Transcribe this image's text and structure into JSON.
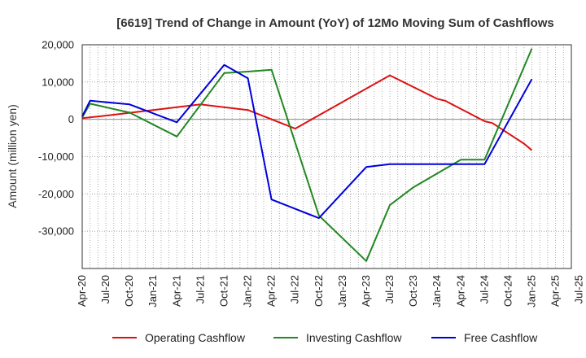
{
  "chart_data": {
    "type": "line",
    "title": "[6619]  Trend of Change in Amount (YoY) of 12Mo Moving Sum of Cashflows",
    "xlabel": "",
    "ylabel": "Amount (million yen)",
    "ylim": [
      -40000,
      20000
    ],
    "yticks": [
      20000,
      10000,
      0,
      -10000,
      -20000,
      -30000
    ],
    "ytick_labels": [
      "20,000",
      "10,000",
      "0",
      "-10,000",
      "-20,000",
      "-30,000"
    ],
    "xlim": [
      0,
      62
    ],
    "xtick_positions": [
      0,
      3,
      6,
      9,
      12,
      15,
      18,
      21,
      24,
      27,
      30,
      33,
      36,
      39,
      42,
      45,
      48,
      51,
      54,
      57,
      60,
      63
    ],
    "xtick_labels": [
      "Apr-20",
      "Jul-20",
      "Oct-20",
      "Jan-21",
      "Apr-21",
      "Jul-21",
      "Oct-21",
      "Jan-22",
      "Apr-22",
      "Jul-22",
      "Oct-22",
      "Jan-23",
      "Apr-23",
      "Jul-23",
      "Oct-23",
      "Jan-24",
      "Apr-24",
      "Jul-24",
      "Oct-24",
      "Jan-25",
      "Apr-25",
      "Jul-25"
    ],
    "grid": true,
    "legend_position": "bottom",
    "series": [
      {
        "name": "Operating Cashflow",
        "color": "#dd1111",
        "x": [
          0,
          3,
          9,
          15,
          21,
          27,
          39,
          45,
          46,
          51,
          52,
          56,
          57
        ],
        "values": [
          300,
          1000,
          2500,
          4000,
          2500,
          -2500,
          11800,
          5500,
          5000,
          -500,
          -1000,
          -6500,
          -8300
        ]
      },
      {
        "name": "Investing Cashflow",
        "color": "#228822",
        "x": [
          0,
          1,
          6,
          12,
          18,
          21,
          24,
          30,
          36,
          39,
          42,
          48,
          51,
          57
        ],
        "values": [
          500,
          4200,
          1800,
          -4600,
          12400,
          12800,
          13300,
          -25800,
          -38000,
          -23000,
          -18200,
          -10800,
          -10800,
          19000
        ]
      },
      {
        "name": "Free Cashflow",
        "color": "#0000dd",
        "x": [
          0,
          1,
          6,
          12,
          18,
          21,
          24,
          30,
          36,
          39,
          45,
          46,
          48,
          51,
          57
        ],
        "values": [
          800,
          5000,
          4000,
          -800,
          14600,
          11000,
          -21500,
          -26500,
          -12800,
          -12000,
          -12000,
          -12000,
          -12000,
          -12000,
          10800
        ]
      }
    ]
  }
}
